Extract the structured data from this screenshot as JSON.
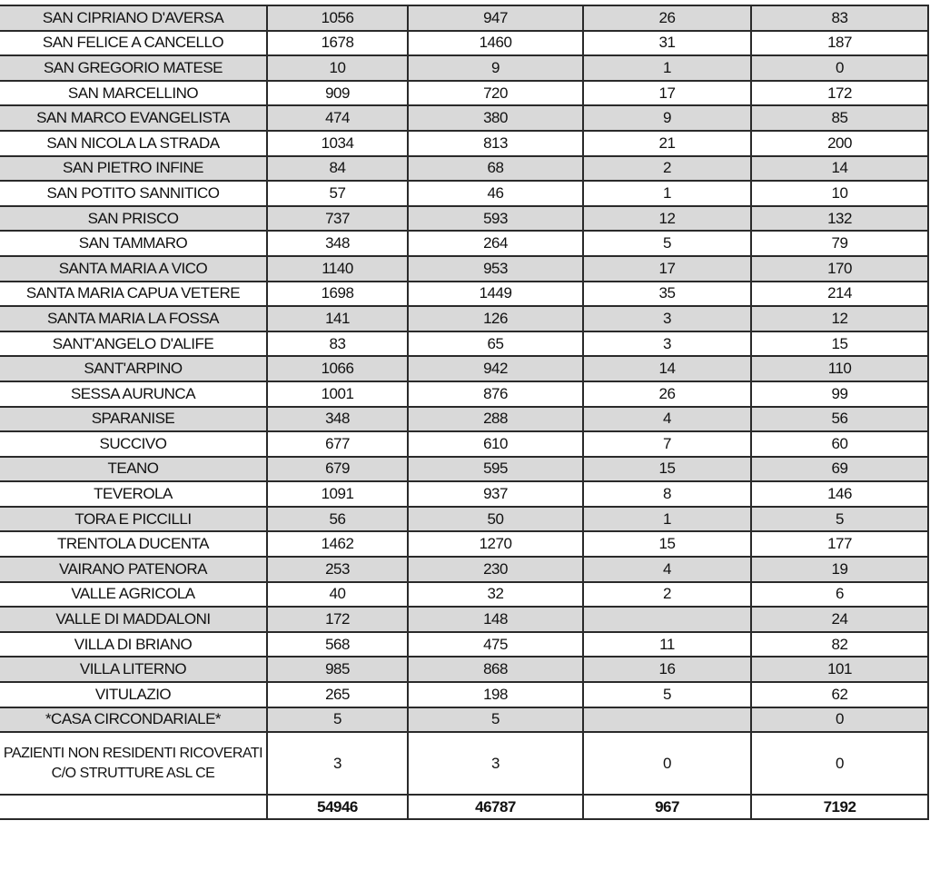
{
  "rows": [
    [
      "SAN CIPRIANO D'AVERSA",
      "1056",
      "947",
      "26",
      "83"
    ],
    [
      "SAN FELICE A CANCELLO",
      "1678",
      "1460",
      "31",
      "187"
    ],
    [
      "SAN GREGORIO MATESE",
      "10",
      "9",
      "1",
      "0"
    ],
    [
      "SAN MARCELLINO",
      "909",
      "720",
      "17",
      "172"
    ],
    [
      "SAN MARCO EVANGELISTA",
      "474",
      "380",
      "9",
      "85"
    ],
    [
      "SAN NICOLA LA STRADA",
      "1034",
      "813",
      "21",
      "200"
    ],
    [
      "SAN PIETRO INFINE",
      "84",
      "68",
      "2",
      "14"
    ],
    [
      "SAN POTITO SANNITICO",
      "57",
      "46",
      "1",
      "10"
    ],
    [
      "SAN PRISCO",
      "737",
      "593",
      "12",
      "132"
    ],
    [
      "SAN TAMMARO",
      "348",
      "264",
      "5",
      "79"
    ],
    [
      "SANTA MARIA A VICO",
      "1140",
      "953",
      "17",
      "170"
    ],
    [
      "SANTA MARIA CAPUA VETERE",
      "1698",
      "1449",
      "35",
      "214"
    ],
    [
      "SANTA MARIA LA FOSSA",
      "141",
      "126",
      "3",
      "12"
    ],
    [
      "SANT'ANGELO D'ALIFE",
      "83",
      "65",
      "3",
      "15"
    ],
    [
      "SANT'ARPINO",
      "1066",
      "942",
      "14",
      "110"
    ],
    [
      "SESSA AURUNCA",
      "1001",
      "876",
      "26",
      "99"
    ],
    [
      "SPARANISE",
      "348",
      "288",
      "4",
      "56"
    ],
    [
      "SUCCIVO",
      "677",
      "610",
      "7",
      "60"
    ],
    [
      "TEANO",
      "679",
      "595",
      "15",
      "69"
    ],
    [
      "TEVEROLA",
      "1091",
      "937",
      "8",
      "146"
    ],
    [
      "TORA E PICCILLI",
      "56",
      "50",
      "1",
      "5"
    ],
    [
      "TRENTOLA DUCENTA",
      "1462",
      "1270",
      "15",
      "177"
    ],
    [
      "VAIRANO PATENORA",
      "253",
      "230",
      "4",
      "19"
    ],
    [
      "VALLE AGRICOLA",
      "40",
      "32",
      "2",
      "6"
    ],
    [
      "VALLE DI MADDALONI",
      "172",
      "148",
      "",
      "24"
    ],
    [
      "VILLA DI BRIANO",
      "568",
      "475",
      "11",
      "82"
    ],
    [
      "VILLA LITERNO",
      "985",
      "868",
      "16",
      "101"
    ],
    [
      "VITULAZIO",
      "265",
      "198",
      "5",
      "62"
    ],
    [
      "*CASA CIRCONDARIALE*",
      "5",
      "5",
      "",
      "0"
    ],
    [
      "PAZIENTI NON RESIDENTI RICOVERATI C/O STRUTTURE ASL CE",
      "3",
      "3",
      "0",
      "0"
    ]
  ],
  "totals": [
    "",
    "54946",
    "46787",
    "967",
    "7192"
  ],
  "colors": {
    "row_shade": "#d9d9d9",
    "border": "#2a2a2a"
  }
}
